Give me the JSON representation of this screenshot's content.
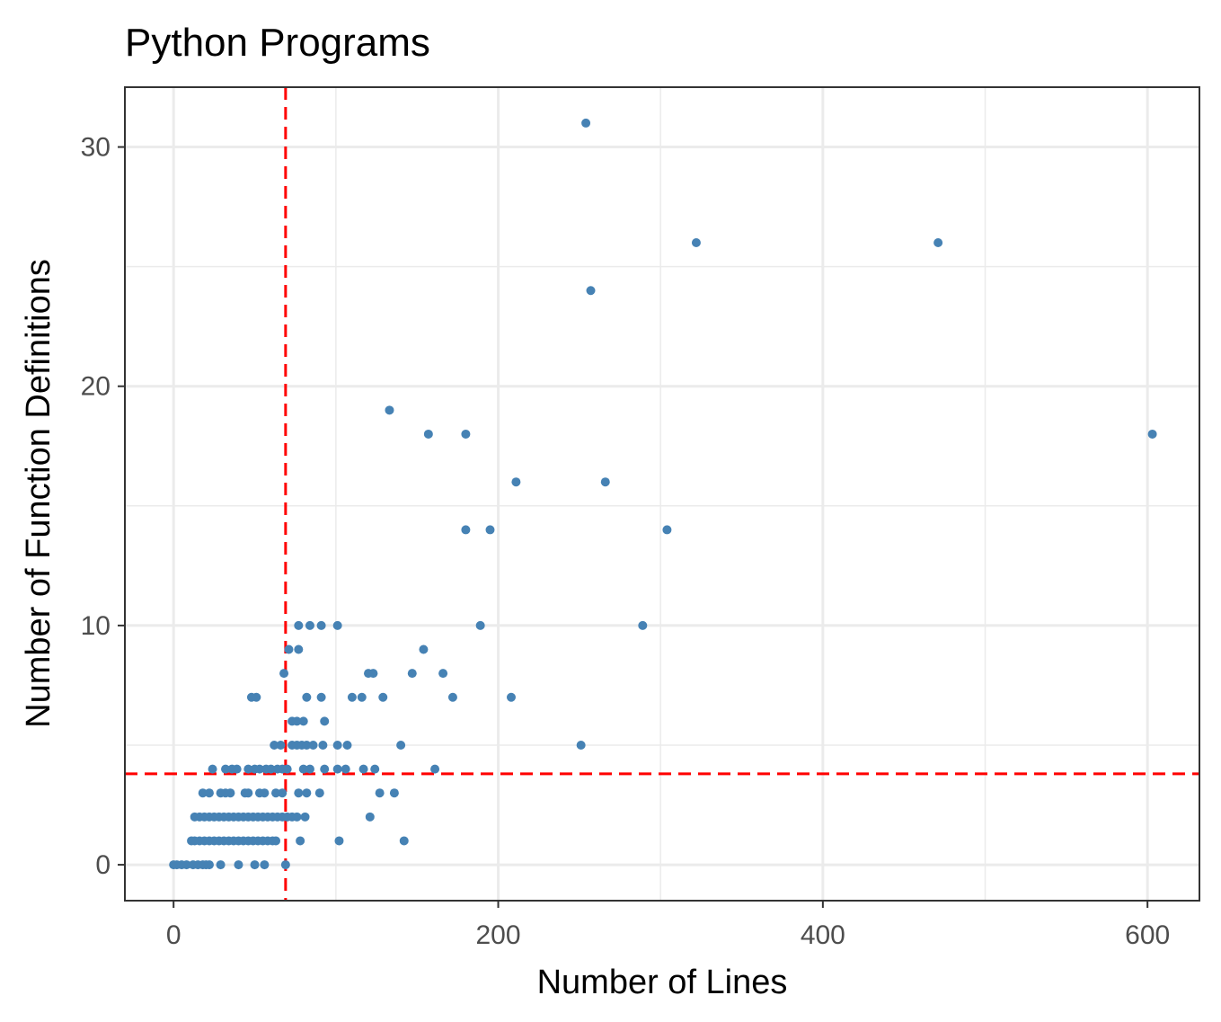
{
  "chart_data": {
    "type": "scatter",
    "title": "Python Programs",
    "xlabel": "Number of Lines",
    "ylabel": "Number of Function Definitions",
    "xlim": [
      -30,
      632
    ],
    "ylim": [
      -1.5,
      32.5
    ],
    "x_ticks": [
      0,
      200,
      400,
      600
    ],
    "y_ticks": [
      0,
      10,
      20,
      30
    ],
    "x_minor": [
      100,
      300,
      500
    ],
    "y_minor": [
      5,
      15,
      25
    ],
    "grid": true,
    "legend": "none",
    "point_color": "#4682b4",
    "ref_color": "#ff0000",
    "ref_lines": {
      "x": 69,
      "y": 3.8
    },
    "series": [
      {
        "points": [
          [
            0,
            0
          ],
          [
            2,
            0
          ],
          [
            5,
            0
          ],
          [
            8,
            0
          ],
          [
            12,
            0
          ],
          [
            15,
            0
          ],
          [
            18,
            0
          ],
          [
            20,
            0
          ],
          [
            22,
            0
          ],
          [
            29,
            0
          ],
          [
            40,
            0
          ],
          [
            50,
            0
          ],
          [
            56,
            0
          ],
          [
            69,
            0
          ],
          [
            11,
            1
          ],
          [
            13,
            1
          ],
          [
            16,
            1
          ],
          [
            19,
            1
          ],
          [
            22,
            1
          ],
          [
            25,
            1
          ],
          [
            28,
            1
          ],
          [
            31,
            1
          ],
          [
            34,
            1
          ],
          [
            37,
            1
          ],
          [
            40,
            1
          ],
          [
            43,
            1
          ],
          [
            46,
            1
          ],
          [
            49,
            1
          ],
          [
            52,
            1
          ],
          [
            55,
            1
          ],
          [
            58,
            1
          ],
          [
            61,
            1
          ],
          [
            63,
            1
          ],
          [
            78,
            1
          ],
          [
            102,
            1
          ],
          [
            142,
            1
          ],
          [
            13,
            2
          ],
          [
            16,
            2
          ],
          [
            19,
            2
          ],
          [
            22,
            2
          ],
          [
            25,
            2
          ],
          [
            28,
            2
          ],
          [
            31,
            2
          ],
          [
            34,
            2
          ],
          [
            37,
            2
          ],
          [
            40,
            2
          ],
          [
            43,
            2
          ],
          [
            46,
            2
          ],
          [
            49,
            2
          ],
          [
            52,
            2
          ],
          [
            55,
            2
          ],
          [
            58,
            2
          ],
          [
            61,
            2
          ],
          [
            64,
            2
          ],
          [
            67,
            2
          ],
          [
            70,
            2
          ],
          [
            73,
            2
          ],
          [
            76,
            2
          ],
          [
            81,
            2
          ],
          [
            121,
            2
          ],
          [
            18,
            3
          ],
          [
            22,
            3
          ],
          [
            29,
            3
          ],
          [
            32,
            3
          ],
          [
            35,
            3
          ],
          [
            44,
            3
          ],
          [
            46,
            3
          ],
          [
            53,
            3
          ],
          [
            56,
            3
          ],
          [
            63,
            3
          ],
          [
            67,
            3
          ],
          [
            77,
            3
          ],
          [
            82,
            3
          ],
          [
            90,
            3
          ],
          [
            127,
            3
          ],
          [
            136,
            3
          ],
          [
            24,
            4
          ],
          [
            32,
            4
          ],
          [
            36,
            4
          ],
          [
            39,
            4
          ],
          [
            46,
            4
          ],
          [
            50,
            4
          ],
          [
            53,
            4
          ],
          [
            57,
            4
          ],
          [
            60,
            4
          ],
          [
            64,
            4
          ],
          [
            67,
            4
          ],
          [
            70,
            4
          ],
          [
            80,
            4
          ],
          [
            84,
            4
          ],
          [
            93,
            4
          ],
          [
            101,
            4
          ],
          [
            106,
            4
          ],
          [
            117,
            4
          ],
          [
            124,
            4
          ],
          [
            161,
            4
          ],
          [
            62,
            5
          ],
          [
            66,
            5
          ],
          [
            73,
            5
          ],
          [
            76,
            5
          ],
          [
            79,
            5
          ],
          [
            82,
            5
          ],
          [
            86,
            5
          ],
          [
            92,
            5
          ],
          [
            101,
            5
          ],
          [
            107,
            5
          ],
          [
            140,
            5
          ],
          [
            251,
            5
          ],
          [
            73,
            6
          ],
          [
            76,
            6
          ],
          [
            80,
            6
          ],
          [
            93,
            6
          ],
          [
            51,
            7
          ],
          [
            48,
            7
          ],
          [
            82,
            7
          ],
          [
            91,
            7
          ],
          [
            110,
            7
          ],
          [
            116,
            7
          ],
          [
            129,
            7
          ],
          [
            172,
            7
          ],
          [
            208,
            7
          ],
          [
            68,
            8
          ],
          [
            120,
            8
          ],
          [
            123,
            8
          ],
          [
            147,
            8
          ],
          [
            166,
            8
          ],
          [
            71,
            9
          ],
          [
            77,
            9
          ],
          [
            154,
            9
          ],
          [
            77,
            10
          ],
          [
            84,
            10
          ],
          [
            91,
            10
          ],
          [
            101,
            10
          ],
          [
            189,
            10
          ],
          [
            289,
            10
          ],
          [
            180,
            14
          ],
          [
            195,
            14
          ],
          [
            304,
            14
          ],
          [
            211,
            16
          ],
          [
            266,
            16
          ],
          [
            157,
            18
          ],
          [
            180,
            18
          ],
          [
            603,
            18
          ],
          [
            133,
            19
          ],
          [
            257,
            24
          ],
          [
            322,
            26
          ],
          [
            471,
            26
          ],
          [
            254,
            31
          ]
        ]
      }
    ]
  }
}
